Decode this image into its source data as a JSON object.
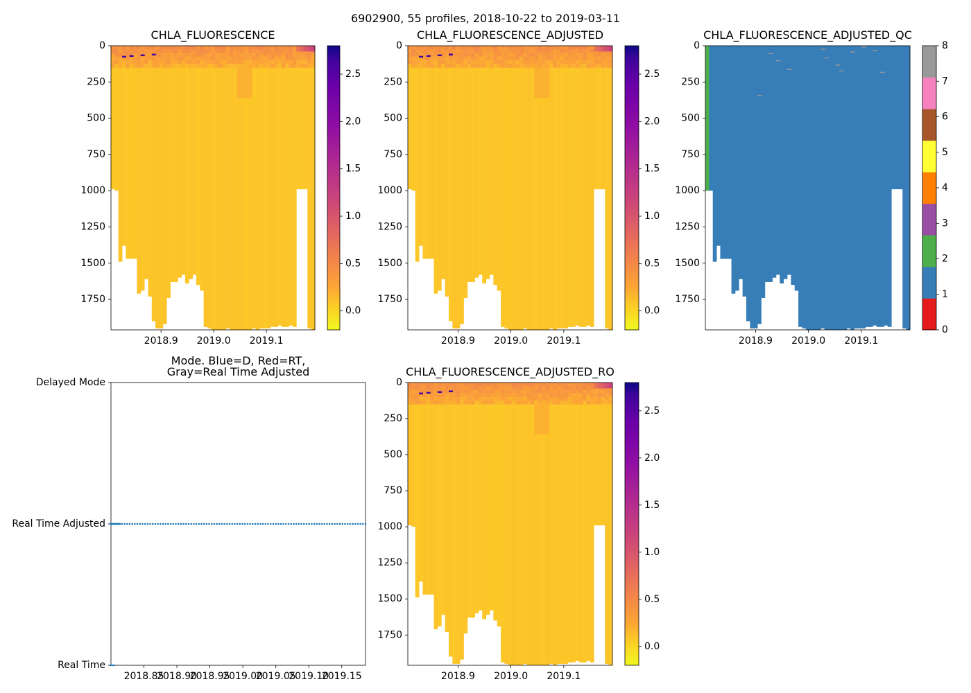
{
  "figure": {
    "suptitle": "6902900, 55 profiles, 2018-10-22 to 2019-03-11",
    "colors": {
      "good_qc": "#377eb8",
      "mode_marker": "#1f77b4",
      "background": "#ffffff"
    }
  },
  "chart_data": [
    {
      "id": "chla-raw",
      "type": "heatmap",
      "title": "CHLA_FLUORESCENCE",
      "xlabel": "",
      "ylabel": "",
      "x_ticks": [
        "2018.9",
        "2019.0",
        "2019.1"
      ],
      "x_tick_values": [
        2018.9,
        2019.0,
        2019.1
      ],
      "y_ticks": [
        "0",
        "250",
        "500",
        "750",
        "1000",
        "1250",
        "1500",
        "1750"
      ],
      "y_tick_values": [
        0,
        250,
        500,
        750,
        1000,
        1250,
        1500,
        1750
      ],
      "xlim": [
        2018.805,
        2019.192
      ],
      "ylim": [
        1960,
        0
      ],
      "colorbar": {
        "cmap": "plasma_r",
        "range": [
          -0.2,
          2.8
        ],
        "ticks": [
          "0.0",
          "0.5",
          "1.0",
          "1.5",
          "2.0",
          "2.5"
        ],
        "tick_values": [
          0.0,
          0.5,
          1.0,
          1.5,
          2.0,
          2.5
        ]
      },
      "profile_max_depth": [
        990,
        1000,
        980,
        1000,
        1000,
        1000,
        1000,
        1000,
        1000,
        1000,
        1000,
        1000,
        1000,
        1000,
        1000,
        1000,
        1000,
        1000,
        1000,
        1000,
        1000,
        1000,
        1000,
        1000,
        1000,
        1000,
        1000,
        1000,
        1000,
        1000,
        1000,
        1000,
        1000,
        1000,
        1000,
        1000,
        1000,
        1000,
        1000,
        1000,
        1000,
        1000,
        1000,
        1000,
        1000,
        1000,
        1000,
        1000,
        1000,
        1000,
        990,
        1000,
        1000,
        990,
        1000
      ],
      "profile_bottom_depth": [
        990,
        1000,
        1490,
        1380,
        1470,
        1470,
        1470,
        1710,
        1690,
        1610,
        1730,
        1900,
        1950,
        1950,
        1920,
        1740,
        1630,
        1630,
        1600,
        1580,
        1640,
        1610,
        1580,
        1650,
        1690,
        1940,
        1950,
        1960,
        1960,
        1960,
        1960,
        1950,
        1960,
        1960,
        1960,
        1960,
        1960,
        1960,
        1950,
        1960,
        1950,
        1950,
        1950,
        1940,
        1940,
        1930,
        1940,
        1940,
        1930,
        1940,
        990,
        990,
        990,
        1950,
        1960
      ],
      "note": "White (no data) below each profile's bottom depth; top ~150 dbar shows elevated chlorophyll (0.3-0.6) with a few maxima ~2.7 near the surface."
    },
    {
      "id": "chla-adjusted",
      "type": "heatmap",
      "title": "CHLA_FLUORESCENCE_ADJUSTED",
      "x_ticks": [
        "2018.9",
        "2019.0",
        "2019.1"
      ],
      "x_tick_values": [
        2018.9,
        2019.0,
        2019.1
      ],
      "y_ticks": [
        "0",
        "250",
        "500",
        "750",
        "1000",
        "1250",
        "1500",
        "1750"
      ],
      "y_tick_values": [
        0,
        250,
        500,
        750,
        1000,
        1250,
        1500,
        1750
      ],
      "xlim": [
        2018.805,
        2019.192
      ],
      "ylim": [
        1960,
        0
      ],
      "colorbar": {
        "cmap": "plasma_r",
        "range": [
          -0.2,
          2.8
        ],
        "ticks": [
          "0.0",
          "0.5",
          "1.0",
          "1.5",
          "2.0",
          "2.5"
        ],
        "tick_values": [
          0.0,
          0.5,
          1.0,
          1.5,
          2.0,
          2.5
        ]
      }
    },
    {
      "id": "chla-adjusted-qc",
      "type": "heatmap",
      "title": "CHLA_FLUORESCENCE_ADJUSTED_QC",
      "x_ticks": [
        "2018.9",
        "2019.0",
        "2019.1"
      ],
      "x_tick_values": [
        2018.9,
        2019.0,
        2019.1
      ],
      "y_ticks": [
        "0",
        "250",
        "500",
        "750",
        "1000",
        "1250",
        "1500",
        "1750"
      ],
      "y_tick_values": [
        0,
        250,
        500,
        750,
        1000,
        1250,
        1500,
        1750
      ],
      "xlim": [
        2018.805,
        2019.192
      ],
      "ylim": [
        1960,
        0
      ],
      "dominant_qc": 1,
      "first_profile_qc": 2,
      "colorbar": {
        "cmap": "qc_categorical",
        "range": [
          0,
          8
        ],
        "ticks": [
          "0",
          "1",
          "2",
          "3",
          "4",
          "5",
          "6",
          "7",
          "8"
        ],
        "tick_values": [
          0,
          1,
          2,
          3,
          4,
          5,
          6,
          7,
          8
        ],
        "category_colors": [
          "#e41a1c",
          "#377eb8",
          "#4daf4a",
          "#984ea3",
          "#ff7f00",
          "#ffff33",
          "#a65628",
          "#f781bf",
          "#999999"
        ]
      }
    },
    {
      "id": "mode",
      "type": "scatter",
      "title": "Mode. Blue=D, Red=RT,\nGray=Real Time Adjusted",
      "title_lines": [
        "Mode. Blue=D, Red=RT,",
        "Gray=Real Time Adjusted"
      ],
      "y_ticks": [
        "Delayed Mode",
        "Real Time Adjusted",
        "Real Time"
      ],
      "y_tick_values": [
        2,
        1,
        0
      ],
      "x_ticks": [
        "2018.85",
        "2018.90",
        "2018.95",
        "2019.00",
        "2019.05",
        "2019.10",
        "2019.15"
      ],
      "x_tick_values": [
        2018.85,
        2018.9,
        2018.95,
        2019.0,
        2019.05,
        2019.1,
        2019.15
      ],
      "xlim": [
        2018.8,
        2019.186
      ],
      "ylim": [
        0,
        2
      ],
      "series": [
        {
          "name": "Real Time Adjusted",
          "y": 1,
          "x_start": 2018.805,
          "x_end": 2019.186,
          "n_points": 55,
          "marker": "dotted"
        }
      ]
    },
    {
      "id": "chla-adjusted-ro",
      "type": "heatmap",
      "title": "CHLA_FLUORESCENCE_ADJUSTED_RO",
      "x_ticks": [
        "2018.9",
        "2019.0",
        "2019.1"
      ],
      "x_tick_values": [
        2018.9,
        2019.0,
        2019.1
      ],
      "y_ticks": [
        "0",
        "250",
        "500",
        "750",
        "1000",
        "1250",
        "1500",
        "1750"
      ],
      "y_tick_values": [
        0,
        250,
        500,
        750,
        1000,
        1250,
        1500,
        1750
      ],
      "xlim": [
        2018.805,
        2019.192
      ],
      "ylim": [
        1960,
        0
      ],
      "colorbar": {
        "cmap": "plasma_r",
        "range": [
          -0.2,
          2.8
        ],
        "ticks": [
          "0.0",
          "0.5",
          "1.0",
          "1.5",
          "2.0",
          "2.5"
        ],
        "tick_values": [
          0.0,
          0.5,
          1.0,
          1.5,
          2.0,
          2.5
        ]
      }
    }
  ]
}
